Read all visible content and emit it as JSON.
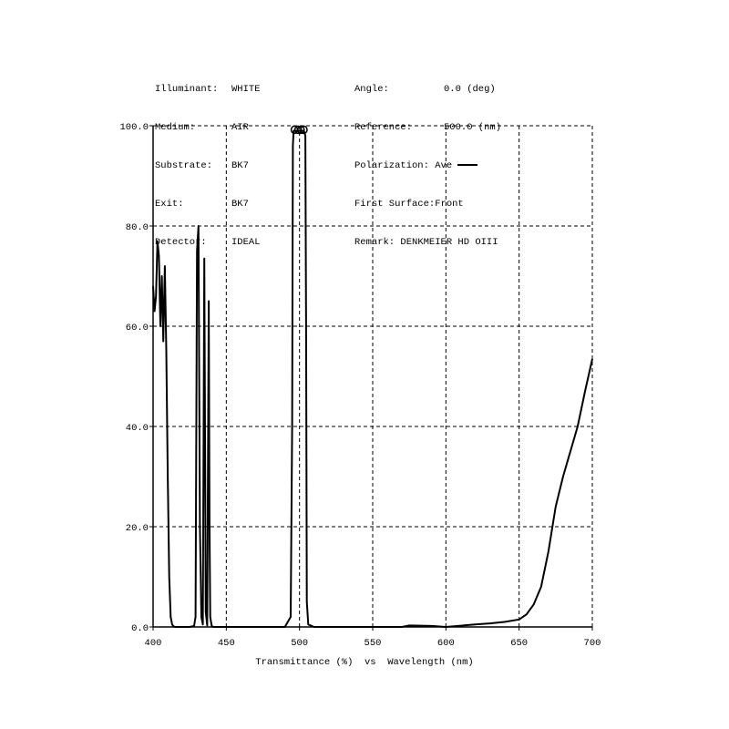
{
  "header": {
    "left": [
      {
        "label": "Illuminant:",
        "value": "WHITE"
      },
      {
        "label": "Medium:",
        "value": "AIR"
      },
      {
        "label": "Substrate:",
        "value": "BK7"
      },
      {
        "label": "Exit:",
        "value": "BK7"
      },
      {
        "label": "Detector:",
        "value": "IDEAL"
      }
    ],
    "right": [
      {
        "label": "Angle:",
        "value": "0.0 (deg)"
      },
      {
        "label": "Reference:",
        "value": "500.0 (nm)"
      },
      {
        "label": "Polarization:",
        "value": "Ave"
      },
      {
        "label": "First Surface:",
        "value": "Front"
      },
      {
        "label": "Remark:",
        "value": "DENKMEIER HD OIII"
      }
    ]
  },
  "chart_data": {
    "type": "line",
    "title": "",
    "xlabel": "Transmittance (%)  vs  Wavelength (nm)",
    "ylabel": "",
    "xlim": [
      400,
      700
    ],
    "ylim": [
      0,
      100
    ],
    "x_ticks": [
      "400",
      "450",
      "500",
      "550",
      "600",
      "650",
      "700"
    ],
    "y_ticks": [
      "0.0",
      "20.0",
      "40.0",
      "60.0",
      "80.0",
      "100.0"
    ],
    "grid": true,
    "grid_style": "dashed",
    "line_color": "#000000",
    "series": [
      {
        "name": "Ave",
        "x": [
          400,
          401,
          402,
          403,
          404,
          405,
          406,
          407,
          408,
          409,
          410,
          411,
          412,
          413,
          414,
          415,
          416,
          420,
          425,
          428,
          429,
          430,
          431,
          432,
          433,
          434,
          435,
          436,
          437,
          438,
          438.5,
          439,
          440,
          441,
          442,
          443,
          445,
          450,
          480,
          490,
          494,
          495,
          495.5,
          496,
          497,
          500,
          503,
          504,
          504.5,
          505,
          506,
          510,
          550,
          570,
          575,
          590,
          600,
          620,
          630,
          640,
          650,
          655,
          660,
          665,
          670,
          675,
          680,
          685,
          690,
          695,
          700
        ],
        "y": [
          68,
          63,
          66,
          77,
          74,
          60,
          70,
          57,
          72,
          55,
          30,
          10,
          2,
          0.5,
          0.1,
          0,
          0,
          0,
          0,
          0.2,
          2,
          75,
          80,
          20,
          2,
          0.5,
          73.5,
          3,
          0.3,
          65,
          21,
          2,
          0.2,
          0,
          0,
          0,
          0,
          0,
          0,
          0,
          2,
          40,
          96,
          99,
          99,
          99,
          99,
          98,
          60,
          5,
          0.5,
          0,
          0,
          0,
          0.3,
          0.2,
          0,
          0.5,
          0.7,
          1.0,
          1.5,
          2.5,
          4.5,
          8,
          15,
          24,
          30,
          35,
          40,
          47,
          53.5
        ]
      }
    ],
    "annotations": [
      "polarization legend line: Ave",
      "circle markers at top of 500 nm passband"
    ]
  }
}
